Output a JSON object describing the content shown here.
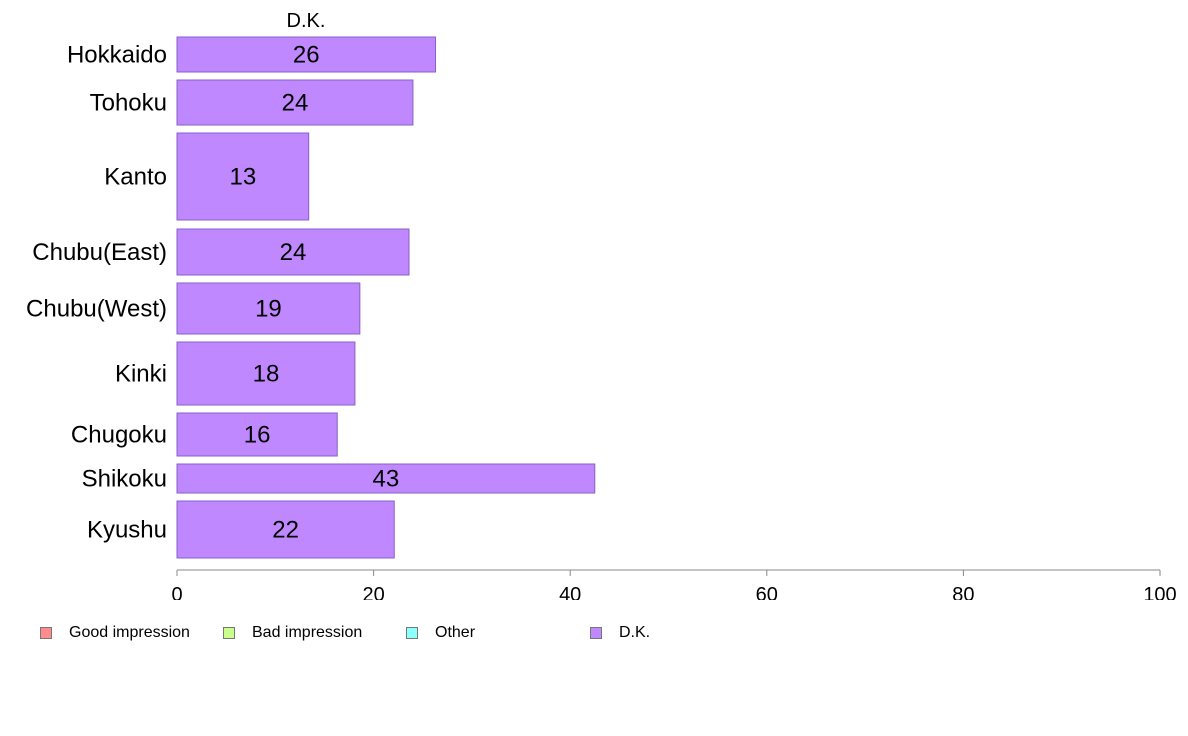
{
  "chart_data": {
    "type": "bar",
    "orientation": "horizontal",
    "series_title": "D.K.",
    "categories": [
      "Hokkaido",
      "Tohoku",
      "Kanto",
      "Chubu(East)",
      "Chubu(West)",
      "Kinki",
      "Chugoku",
      "Shikoku",
      "Kyushu"
    ],
    "values": [
      26.3,
      24.0,
      13.4,
      23.6,
      18.6,
      18.1,
      16.3,
      42.5,
      22.1
    ],
    "value_labels": [
      "26",
      "24",
      "13",
      "24",
      "19",
      "18",
      "16",
      "43",
      "22"
    ],
    "xlim": [
      0,
      100
    ],
    "xticks": [
      0,
      20,
      40,
      60,
      80,
      100
    ],
    "xtick_labels": [
      "0",
      "20",
      "40",
      "60",
      "80",
      "100"
    ],
    "grid": false,
    "bar_color": "#bf88ff",
    "legend_position": "bottom-left",
    "legend": [
      {
        "label": "Good impression",
        "color": "#ff8c8c"
      },
      {
        "label": "Bad impression",
        "color": "#c8ff8c"
      },
      {
        "label": "Other",
        "color": "#8cffff"
      },
      {
        "label": "D.K.",
        "color": "#bf88ff"
      }
    ]
  }
}
